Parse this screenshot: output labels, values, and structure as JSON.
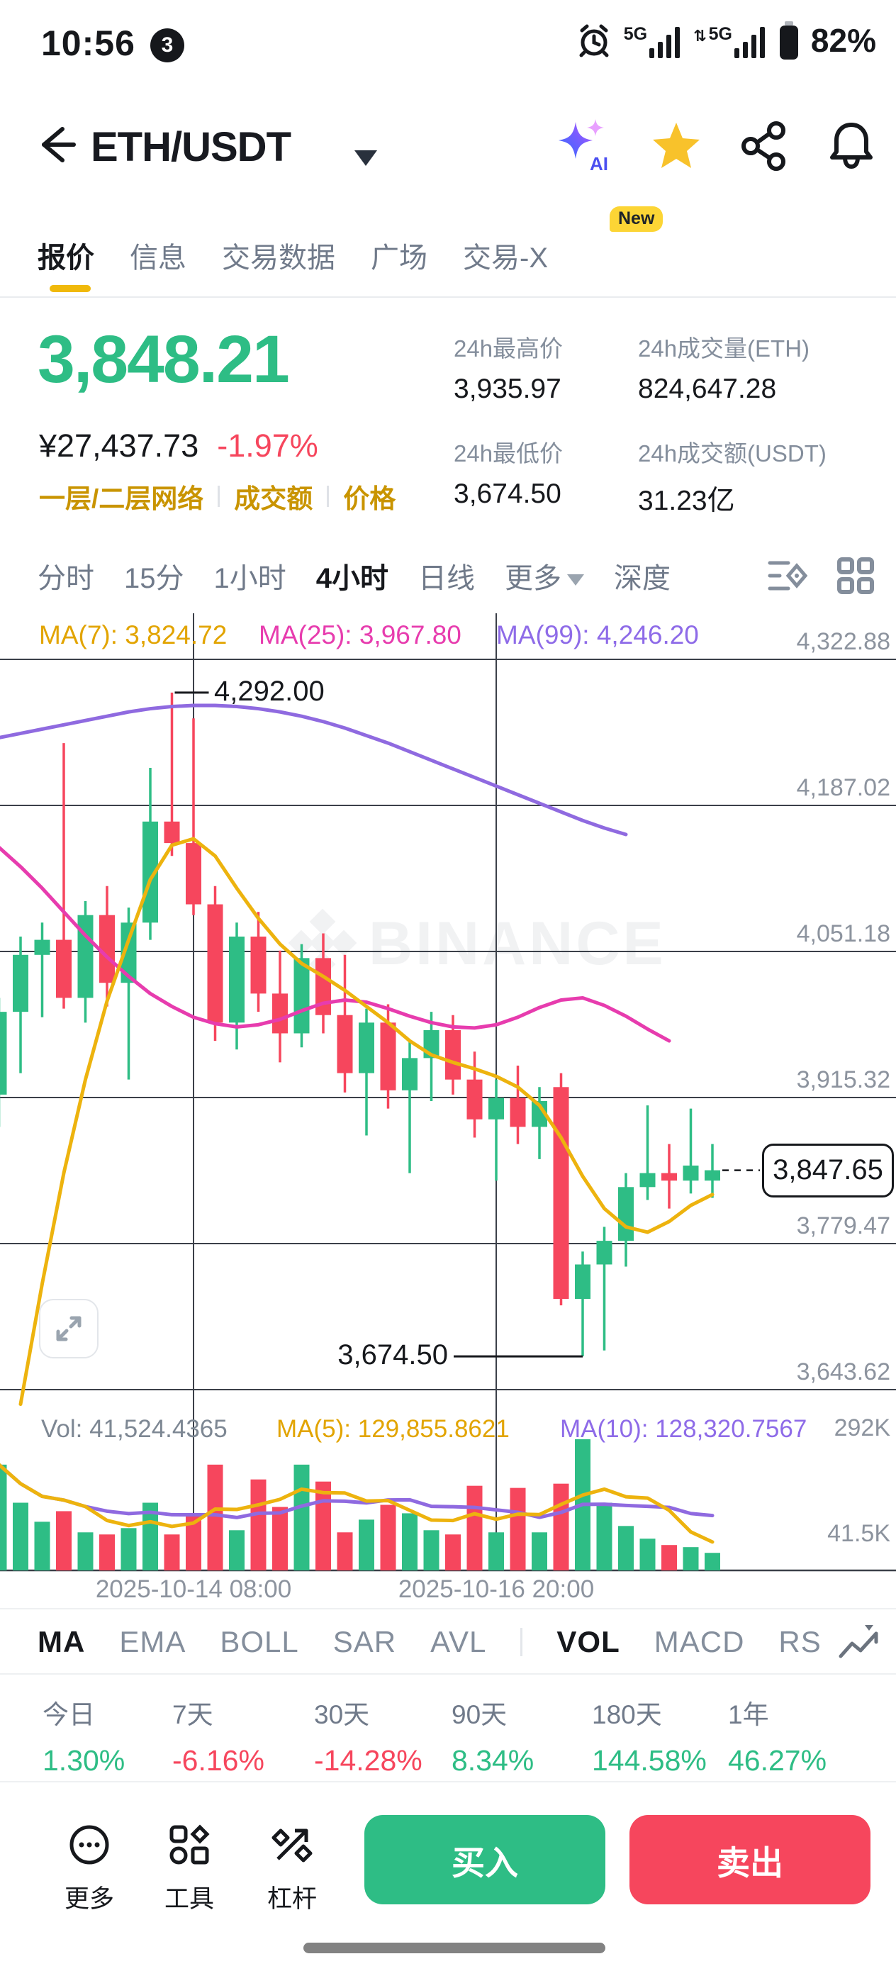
{
  "status_bar": {
    "time": "10:56",
    "notification_count": "3",
    "network_1": "5G",
    "network_2": "5G",
    "battery_percent": "82%"
  },
  "header": {
    "pair": "ETH/USDT"
  },
  "tabs": {
    "new_badge": "New",
    "items": [
      {
        "label": "报价",
        "active": true
      },
      {
        "label": "信息",
        "active": false
      },
      {
        "label": "交易数据",
        "active": false
      },
      {
        "label": "广场",
        "active": false
      },
      {
        "label": "交易-X",
        "active": false
      }
    ]
  },
  "ticker": {
    "last_price": "3,848.21",
    "fiat_price": "¥27,437.73",
    "change_percent": "-1.97%",
    "price_color": "#2ebd85",
    "change_color": "#f6465d",
    "tags": [
      "一层/二层网络",
      "成交额",
      "价格"
    ],
    "stats": [
      {
        "label": "24h最高价",
        "value": "3,935.97"
      },
      {
        "label": "24h成交量(ETH)",
        "value": "824,647.28"
      },
      {
        "label": "24h最低价",
        "value": "3,674.50"
      },
      {
        "label": "24h成交额(USDT)",
        "value": "31.23亿"
      }
    ]
  },
  "intervals": {
    "items": [
      {
        "label": "分时",
        "active": false
      },
      {
        "label": "15分",
        "active": false
      },
      {
        "label": "1小时",
        "active": false
      },
      {
        "label": "4小时",
        "active": true
      },
      {
        "label": "日线",
        "active": false
      },
      {
        "label": "更多",
        "active": false,
        "dropdown": true
      },
      {
        "label": "深度",
        "active": false
      }
    ]
  },
  "chart": {
    "ma_labels": [
      {
        "text": "MA(7): 3,824.72",
        "color": "#e2a400"
      },
      {
        "text": "MA(25): 3,967.80",
        "color": "#e73cae"
      },
      {
        "text": "MA(99): 4,246.20",
        "color": "#8e6be8"
      }
    ],
    "vol_header": [
      {
        "text": "Vol: 41,524.4365",
        "color": "#7d8793"
      },
      {
        "text": "MA(5): 129,855.8621",
        "color": "#e2a400"
      },
      {
        "text": "MA(10): 128,320.7567",
        "color": "#8e6be8"
      }
    ],
    "annotations": {
      "high": "4,292.00",
      "low": "3,674.50"
    },
    "last_price_label": "3,847.65",
    "watermark": "BINANCE"
  },
  "chart_data": {
    "type": "candlestick",
    "interval": "4h",
    "up_color": "#2ebd85",
    "down_color": "#f6465d",
    "ma7_color": "#edb30e",
    "ma25_color": "#e73cae",
    "ma99_color": "#8f6ae0",
    "y_axis": [
      {
        "text": "4,322.88",
        "price": 4322.88
      },
      {
        "text": "4,187.02",
        "price": 4187.02
      },
      {
        "text": "4,051.18",
        "price": 4051.18
      },
      {
        "text": "3,915.32",
        "price": 3915.32
      },
      {
        "text": "3,779.47",
        "price": 3779.47
      },
      {
        "text": "3,643.62",
        "price": 3643.62
      }
    ],
    "vol_axis": [
      {
        "text": "292K",
        "value": 292
      },
      {
        "text": "41.5K",
        "value": 41.5
      }
    ],
    "x_axis": [
      {
        "label": "2025-10-14 08:00",
        "index": 9
      },
      {
        "label": "2025-10-16 20:00",
        "index": 23
      }
    ],
    "high_annotation": {
      "price": 4292.0,
      "index": 8
    },
    "low_annotation": {
      "price": 3674.5,
      "index": 27
    },
    "last_price": 3847.65,
    "candles": [
      [
        3918,
        4008,
        3888,
        3995
      ],
      [
        3995,
        4065,
        3938,
        4048
      ],
      [
        4048,
        4078,
        3990,
        4062
      ],
      [
        4062,
        4245,
        3998,
        4008
      ],
      [
        4008,
        4098,
        3985,
        4085
      ],
      [
        4085,
        4112,
        4000,
        4022
      ],
      [
        4022,
        4092,
        3932,
        4078
      ],
      [
        4078,
        4222,
        4062,
        4172
      ],
      [
        4172,
        4292,
        4140,
        4152
      ],
      [
        4152,
        4268,
        4085,
        4095
      ],
      [
        4095,
        4112,
        3968,
        3985
      ],
      [
        3985,
        4078,
        3960,
        4065
      ],
      [
        4065,
        4088,
        3995,
        4012
      ],
      [
        4012,
        4052,
        3948,
        3975
      ],
      [
        3975,
        4058,
        3962,
        4045
      ],
      [
        4045,
        4068,
        3975,
        3992
      ],
      [
        3992,
        4048,
        3920,
        3938
      ],
      [
        3938,
        3998,
        3880,
        3985
      ],
      [
        3985,
        4002,
        3905,
        3922
      ],
      [
        3922,
        3968,
        3845,
        3952
      ],
      [
        3952,
        3995,
        3912,
        3978
      ],
      [
        3978,
        3992,
        3918,
        3932
      ],
      [
        3932,
        3958,
        3878,
        3895
      ],
      [
        3895,
        3932,
        3838,
        3915
      ],
      [
        3915,
        3945,
        3872,
        3888
      ],
      [
        3888,
        3925,
        3858,
        3912
      ],
      [
        3925,
        3938,
        3722,
        3728
      ],
      [
        3728,
        3772,
        3674.5,
        3760
      ],
      [
        3760,
        3795,
        3680,
        3782
      ],
      [
        3782,
        3845,
        3758,
        3832
      ],
      [
        3832,
        3908,
        3820,
        3845
      ],
      [
        3845,
        3872,
        3812,
        3838
      ],
      [
        3838,
        3905,
        3826,
        3852
      ],
      [
        3838,
        3872,
        3822,
        3847.65
      ]
    ],
    "volumes_k": [
      250,
      160,
      115,
      140,
      90,
      85,
      100,
      160,
      85,
      130,
      250,
      95,
      215,
      150,
      250,
      210,
      90,
      120,
      155,
      135,
      95,
      85,
      200,
      90,
      195,
      90,
      205,
      310,
      160,
      105,
      75,
      60,
      55,
      41.5
    ],
    "ma7": [
      null,
      3630,
      3742,
      3845,
      3932,
      4005,
      4062,
      4118,
      4150,
      4156,
      4140,
      4110,
      4082,
      4058,
      4040,
      4028,
      4015,
      4000,
      3985,
      3968,
      3955,
      3948,
      3942,
      3935,
      3925,
      3908,
      3878,
      3842,
      3812,
      3795,
      3790,
      3800,
      3815,
      3825
    ],
    "ma25": [
      4148,
      4130,
      4110,
      4088,
      4066,
      4046,
      4028,
      4012,
      4000,
      3990,
      3984,
      3981,
      3983,
      3988,
      3996,
      4003,
      4006,
      4004,
      3998,
      3991,
      3985,
      3981,
      3980,
      3983,
      3990,
      3999,
      4006,
      4008,
      4001,
      3991,
      3979,
      3968,
      null,
      null
    ],
    "ma99": [
      4250,
      4254,
      4258,
      4262,
      4266,
      4270,
      4274,
      4277,
      4279,
      4280,
      4280,
      4279,
      4277,
      4274,
      4270,
      4265,
      4259,
      4252,
      4245,
      4237,
      4229,
      4221,
      4213,
      4205,
      4197,
      4189,
      4181,
      4173,
      4166,
      4160,
      null,
      null,
      null,
      null
    ]
  },
  "indicator_tabs": {
    "items": [
      {
        "label": "MA",
        "active": true
      },
      {
        "label": "EMA",
        "active": false
      },
      {
        "label": "BOLL",
        "active": false
      },
      {
        "label": "SAR",
        "active": false
      },
      {
        "label": "AVL",
        "active": false
      },
      {
        "label": "VOL",
        "active": true
      },
      {
        "label": "MACD",
        "active": false
      },
      {
        "label": "RS",
        "active": false
      }
    ]
  },
  "performance": {
    "columns": [
      {
        "label": "今日",
        "value": "1.30%",
        "color": "#2ebd85"
      },
      {
        "label": "7天",
        "value": "-6.16%",
        "color": "#f6465d"
      },
      {
        "label": "30天",
        "value": "-14.28%",
        "color": "#f6465d"
      },
      {
        "label": "90天",
        "value": "8.34%",
        "color": "#2ebd85"
      },
      {
        "label": "180天",
        "value": "144.58%",
        "color": "#2ebd85"
      },
      {
        "label": "1年",
        "value": "46.27%",
        "color": "#2ebd85"
      }
    ]
  },
  "footer": {
    "actions": [
      {
        "label": "更多"
      },
      {
        "label": "工具"
      },
      {
        "label": "杠杆"
      }
    ],
    "buy_label": "买入",
    "sell_label": "卖出",
    "buy_color": "#2ebd85",
    "sell_color": "#f6465d"
  }
}
